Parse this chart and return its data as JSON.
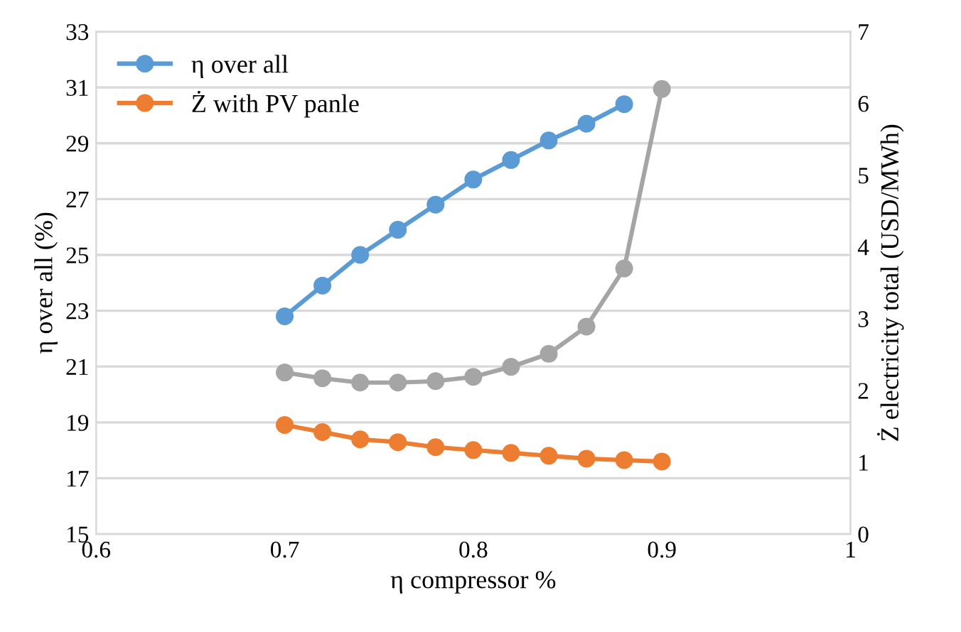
{
  "chart_data": {
    "type": "line",
    "xlabel": "η compressor %",
    "ylabel": "η over all (%)",
    "y2label": "Ż electricity total (USD/MWh)",
    "x": [
      0.7,
      0.72,
      0.74,
      0.76,
      0.78,
      0.8,
      0.82,
      0.84,
      0.86,
      0.88,
      0.9
    ],
    "series": [
      {
        "name": "η over all",
        "color": "#5b9bd5",
        "values": [
          22.8,
          23.9,
          25.0,
          25.9,
          26.8,
          27.7,
          28.4,
          29.1,
          29.7,
          30.4,
          null
        ]
      },
      {
        "name": "Ż with PV panle",
        "color": "#ed7d31",
        "axis": "y2",
        "values": [
          1.52,
          1.42,
          1.32,
          1.28,
          1.21,
          1.17,
          1.13,
          1.09,
          1.05,
          1.03,
          1.01
        ]
      },
      {
        "color": "#a5a5a5",
        "axis": "y2",
        "values": [
          2.25,
          2.17,
          2.11,
          2.11,
          2.13,
          2.19,
          2.33,
          2.51,
          2.89,
          3.7,
          6.2
        ]
      }
    ],
    "xlim": [
      0.6,
      1
    ],
    "xticks": [
      0.6,
      0.7,
      0.8,
      0.9,
      1
    ],
    "ylim": [
      15,
      33
    ],
    "yticks": [
      15,
      17,
      19,
      21,
      23,
      25,
      27,
      29,
      31,
      33
    ],
    "y2lim": [
      0,
      7
    ],
    "y2ticks": [
      0,
      1,
      2,
      3,
      4,
      5,
      6,
      7
    ],
    "grid": "y",
    "legend": "top left",
    "marker": "circle",
    "line_style": "solid"
  }
}
